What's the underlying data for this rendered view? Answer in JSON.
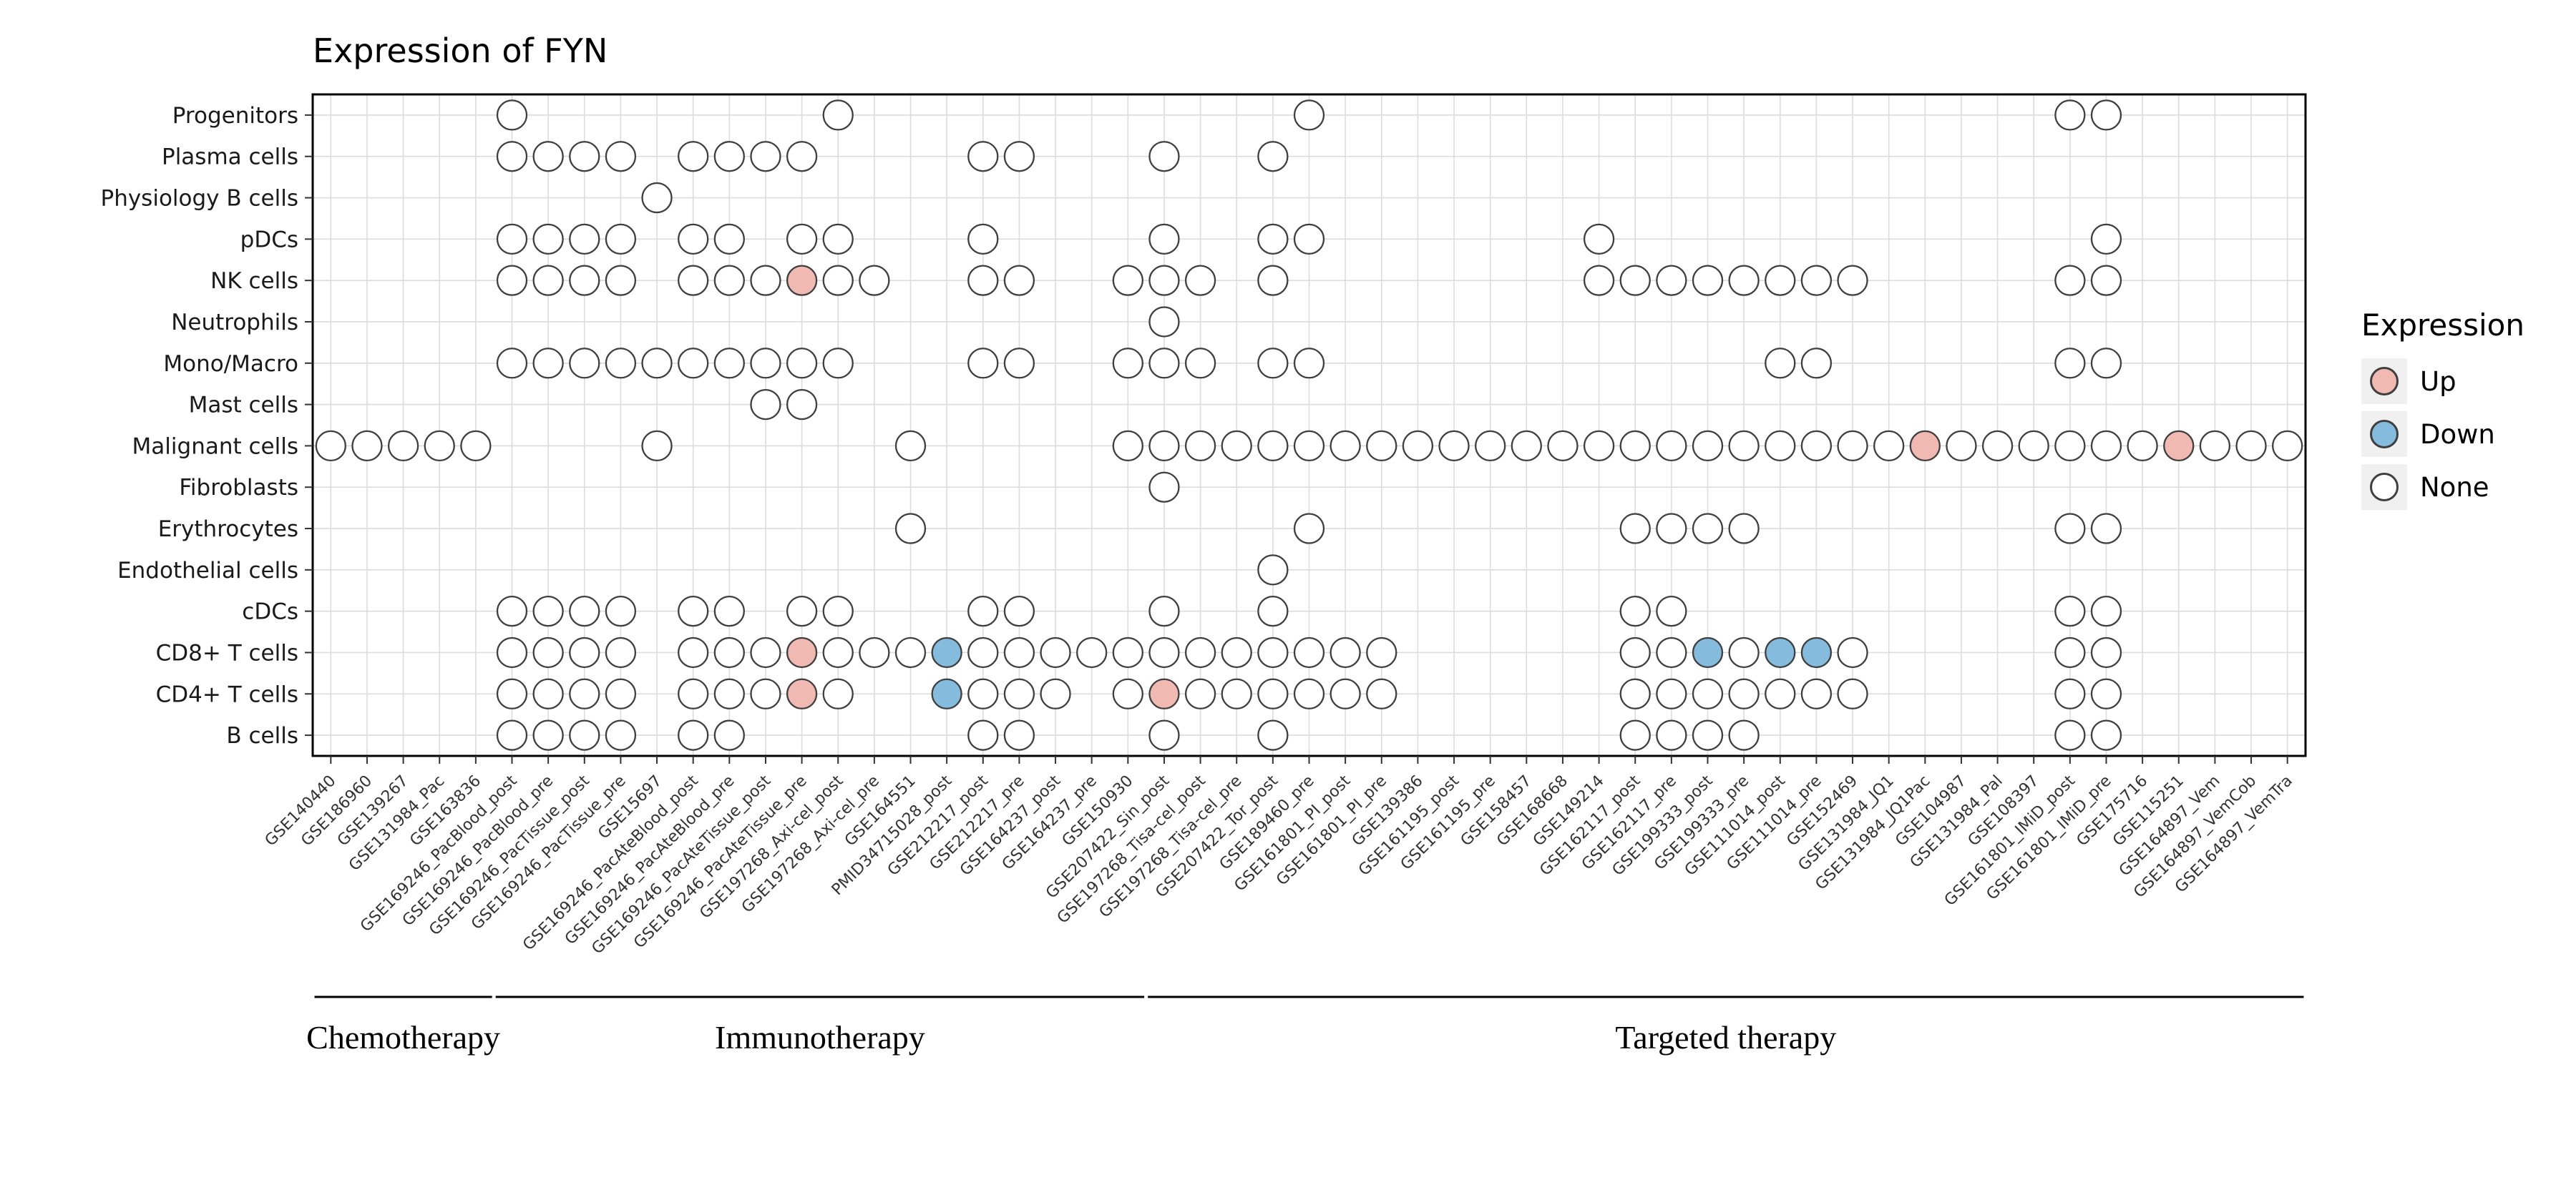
{
  "chart_data": {
    "type": "dotplot",
    "title": "Expression of FYN",
    "legend": {
      "title": "Expression",
      "items": [
        {
          "label": "Up",
          "value": "u",
          "color": "#F0B9B1"
        },
        {
          "label": "Down",
          "value": "d",
          "color": "#85BCDD"
        },
        {
          "label": "None",
          "value": "n",
          "color": "#FFFFFF"
        }
      ]
    },
    "colors": {
      "up": "#F0B9B1",
      "down": "#85BCDD",
      "none": "#FFFFFF",
      "outline": "#3F3F3F",
      "grid": "#DCDCDC",
      "border": "#000000"
    },
    "rows_axis": "cell types",
    "columns_axis": "datasets",
    "columns": [
      "GSE140440",
      "GSE186960",
      "GSE139267",
      "GSE131984_Pac",
      "GSE163836",
      "GSE169246_PacBlood_post",
      "GSE169246_PacBlood_pre",
      "GSE169246_PacTissue_post",
      "GSE169246_PacTissue_pre",
      "GSE15697",
      "GSE169246_PacAteBlood_post",
      "GSE169246_PacAteBlood_pre",
      "GSE169246_PacAteTissue_post",
      "GSE169246_PacAteTissue_pre",
      "GSE197268_Axi-cel_post",
      "GSE197268_Axi-cel_pre",
      "GSE164551",
      "PMID34715028_post",
      "GSE212217_post",
      "GSE212217_pre",
      "GSE164237_post",
      "GSE164237_pre",
      "GSE150930",
      "GSE207422_Sin_post",
      "GSE197268_Tisa-cel_post",
      "GSE197268_Tisa-cel_pre",
      "GSE207422_Tor_post",
      "GSE189460_pre",
      "GSE161801_PI_post",
      "GSE161801_PI_pre",
      "GSE139386",
      "GSE161195_post",
      "GSE161195_pre",
      "GSE158457",
      "GSE168668",
      "GSE149214",
      "GSE162117_post",
      "GSE162117_pre",
      "GSE199333_post",
      "GSE199333_pre",
      "GSE111014_post",
      "GSE111014_pre",
      "GSE152469",
      "GSE131984_JQ1",
      "GSE131984_JQ1Pac",
      "GSE104987",
      "GSE131984_Pal",
      "GSE108397",
      "GSE161801_IMiD_post",
      "GSE161801_IMiD_pre",
      "GSE175716",
      "GSE115251",
      "GSE164897_Vem",
      "GSE164897_VemCob",
      "GSE164897_VemTra"
    ],
    "groups": [
      {
        "label": "Chemotherapy",
        "start": 0,
        "end": 4
      },
      {
        "label": "Immunotherapy",
        "start": 5,
        "end": 22
      },
      {
        "label": "Targeted therapy",
        "start": 23,
        "end": 54
      }
    ],
    "rows": [
      {
        "label": "Progenitors",
        "dots": {
          "5": "n",
          "14": "n",
          "27": "n",
          "48": "n",
          "49": "n"
        }
      },
      {
        "label": "Plasma cells",
        "dots": {
          "5": "n",
          "6": "n",
          "7": "n",
          "8": "n",
          "10": "n",
          "11": "n",
          "12": "n",
          "13": "n",
          "18": "n",
          "19": "n",
          "23": "n",
          "26": "n"
        }
      },
      {
        "label": "Physiology B cells",
        "dots": {
          "9": "n"
        }
      },
      {
        "label": "pDCs",
        "dots": {
          "5": "n",
          "6": "n",
          "7": "n",
          "8": "n",
          "10": "n",
          "11": "n",
          "13": "n",
          "14": "n",
          "18": "n",
          "23": "n",
          "26": "n",
          "27": "n",
          "35": "n",
          "49": "n"
        }
      },
      {
        "label": "NK cells",
        "dots": {
          "5": "n",
          "6": "n",
          "7": "n",
          "8": "n",
          "10": "n",
          "11": "n",
          "12": "n",
          "13": "u",
          "14": "n",
          "15": "n",
          "18": "n",
          "19": "n",
          "22": "n",
          "23": "n",
          "24": "n",
          "26": "n",
          "35": "n",
          "36": "n",
          "37": "n",
          "38": "n",
          "39": "n",
          "40": "n",
          "41": "n",
          "42": "n",
          "48": "n",
          "49": "n"
        }
      },
      {
        "label": "Neutrophils",
        "dots": {
          "23": "n"
        }
      },
      {
        "label": "Mono/Macro",
        "dots": {
          "5": "n",
          "6": "n",
          "7": "n",
          "8": "n",
          "9": "n",
          "10": "n",
          "11": "n",
          "12": "n",
          "13": "n",
          "14": "n",
          "18": "n",
          "19": "n",
          "22": "n",
          "23": "n",
          "24": "n",
          "26": "n",
          "27": "n",
          "40": "n",
          "41": "n",
          "48": "n",
          "49": "n"
        }
      },
      {
        "label": "Mast cells",
        "dots": {
          "12": "n",
          "13": "n"
        }
      },
      {
        "label": "Malignant cells",
        "dots": {
          "0": "n",
          "1": "n",
          "2": "n",
          "3": "n",
          "4": "n",
          "9": "n",
          "16": "n",
          "22": "n",
          "23": "n",
          "24": "n",
          "25": "n",
          "26": "n",
          "27": "n",
          "28": "n",
          "29": "n",
          "30": "n",
          "31": "n",
          "32": "n",
          "33": "n",
          "34": "n",
          "35": "n",
          "36": "n",
          "37": "n",
          "38": "n",
          "39": "n",
          "40": "n",
          "41": "n",
          "42": "n",
          "43": "n",
          "44": "u",
          "45": "n",
          "46": "n",
          "47": "n",
          "48": "n",
          "49": "n",
          "50": "n",
          "51": "u",
          "52": "n",
          "53": "n",
          "54": "n"
        }
      },
      {
        "label": "Fibroblasts",
        "dots": {
          "23": "n"
        }
      },
      {
        "label": "Erythrocytes",
        "dots": {
          "16": "n",
          "27": "n",
          "36": "n",
          "37": "n",
          "38": "n",
          "39": "n",
          "48": "n",
          "49": "n"
        }
      },
      {
        "label": "Endothelial cells",
        "dots": {
          "26": "n"
        }
      },
      {
        "label": "cDCs",
        "dots": {
          "5": "n",
          "6": "n",
          "7": "n",
          "8": "n",
          "10": "n",
          "11": "n",
          "13": "n",
          "14": "n",
          "18": "n",
          "19": "n",
          "23": "n",
          "26": "n",
          "36": "n",
          "37": "n",
          "48": "n",
          "49": "n"
        }
      },
      {
        "label": "CD8+ T cells",
        "dots": {
          "5": "n",
          "6": "n",
          "7": "n",
          "8": "n",
          "10": "n",
          "11": "n",
          "12": "n",
          "13": "u",
          "14": "n",
          "15": "n",
          "16": "n",
          "17": "d",
          "18": "n",
          "19": "n",
          "20": "n",
          "21": "n",
          "22": "n",
          "23": "n",
          "24": "n",
          "25": "n",
          "26": "n",
          "27": "n",
          "28": "n",
          "29": "n",
          "36": "n",
          "37": "n",
          "38": "d",
          "39": "n",
          "40": "d",
          "41": "d",
          "42": "n",
          "48": "n",
          "49": "n"
        }
      },
      {
        "label": "CD4+ T cells",
        "dots": {
          "5": "n",
          "6": "n",
          "7": "n",
          "8": "n",
          "10": "n",
          "11": "n",
          "12": "n",
          "13": "u",
          "14": "n",
          "17": "d",
          "18": "n",
          "19": "n",
          "20": "n",
          "22": "n",
          "23": "u",
          "24": "n",
          "25": "n",
          "26": "n",
          "27": "n",
          "28": "n",
          "29": "n",
          "36": "n",
          "37": "n",
          "38": "n",
          "39": "n",
          "40": "n",
          "41": "n",
          "42": "n",
          "48": "n",
          "49": "n"
        }
      },
      {
        "label": "B cells",
        "dots": {
          "5": "n",
          "6": "n",
          "7": "n",
          "8": "n",
          "10": "n",
          "11": "n",
          "18": "n",
          "19": "n",
          "23": "n",
          "26": "n",
          "36": "n",
          "37": "n",
          "38": "n",
          "39": "n",
          "48": "n",
          "49": "n"
        }
      }
    ]
  }
}
